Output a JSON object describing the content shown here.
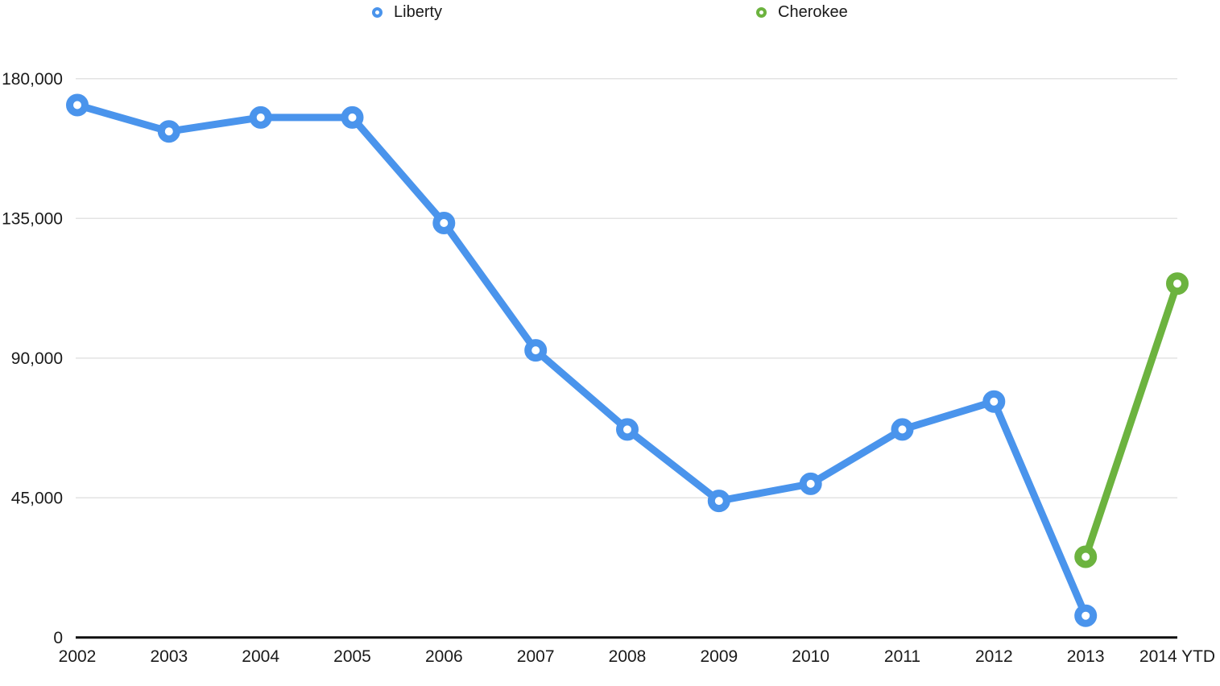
{
  "legend": {
    "items": [
      {
        "label": "Liberty",
        "color": "#4a94ec"
      },
      {
        "label": "Cherokee",
        "color": "#6cb33f"
      }
    ]
  },
  "chart_data": {
    "type": "line",
    "title": "",
    "xlabel": "",
    "ylabel": "",
    "categories": [
      "2002",
      "2003",
      "2004",
      "2005",
      "2006",
      "2007",
      "2008",
      "2009",
      "2010",
      "2011",
      "2012",
      "2013",
      "2014 YTD"
    ],
    "series": [
      {
        "name": "Liberty",
        "color": "#4a94ec",
        "values": [
          171500,
          163000,
          167500,
          167500,
          133500,
          92500,
          67000,
          44000,
          49500,
          67000,
          76000,
          7000,
          null
        ]
      },
      {
        "name": "Cherokee",
        "color": "#6cb33f",
        "values": [
          null,
          null,
          null,
          null,
          null,
          null,
          null,
          null,
          null,
          null,
          null,
          26000,
          114000
        ]
      }
    ],
    "ylim": [
      0,
      180000
    ],
    "yticks": [
      0,
      45000,
      90000,
      135000,
      180000
    ],
    "ytick_labels": [
      "0",
      "45,000",
      "90,000",
      "135,000",
      "180,000"
    ],
    "grid": true,
    "legend_position": "top",
    "marker_style": "open-circle",
    "axis_color": "#0f0f0f",
    "gridline_color": "#e3e3e3",
    "text_color": "#1a1a1a"
  }
}
